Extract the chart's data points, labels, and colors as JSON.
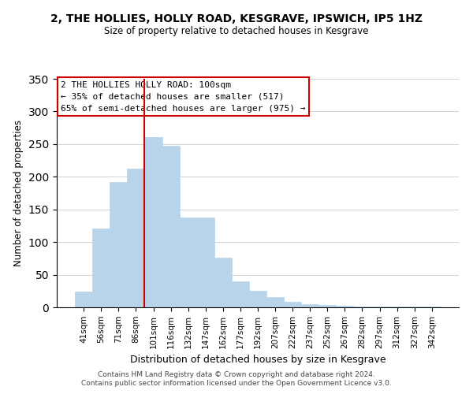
{
  "title": "2, THE HOLLIES, HOLLY ROAD, KESGRAVE, IPSWICH, IP5 1HZ",
  "subtitle": "Size of property relative to detached houses in Kesgrave",
  "xlabel": "Distribution of detached houses by size in Kesgrave",
  "ylabel": "Number of detached properties",
  "bar_color": "#b8d4ea",
  "bar_edge_color": "#b8d4ea",
  "categories": [
    "41sqm",
    "56sqm",
    "71sqm",
    "86sqm",
    "101sqm",
    "116sqm",
    "132sqm",
    "147sqm",
    "162sqm",
    "177sqm",
    "192sqm",
    "207sqm",
    "222sqm",
    "237sqm",
    "252sqm",
    "267sqm",
    "282sqm",
    "297sqm",
    "312sqm",
    "327sqm",
    "342sqm"
  ],
  "values": [
    24,
    121,
    192,
    213,
    261,
    248,
    138,
    137,
    76,
    40,
    25,
    16,
    8,
    5,
    4,
    2,
    1,
    1,
    1,
    1,
    1
  ],
  "highlight_index": 4,
  "highlight_line_color": "#cc0000",
  "ylim": [
    0,
    350
  ],
  "yticks": [
    0,
    50,
    100,
    150,
    200,
    250,
    300,
    350
  ],
  "annotation_box_text": "2 THE HOLLIES HOLLY ROAD: 100sqm\n← 35% of detached houses are smaller (517)\n65% of semi-detached houses are larger (975) →",
  "footnote1": "Contains HM Land Registry data © Crown copyright and database right 2024.",
  "footnote2": "Contains public sector information licensed under the Open Government Licence v3.0."
}
